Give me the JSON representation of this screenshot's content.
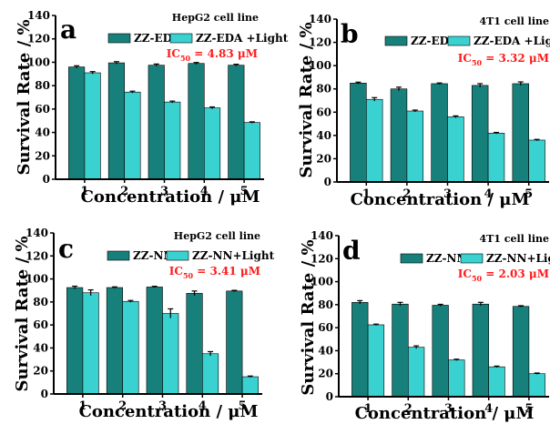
{
  "colors": {
    "dark_bar": "#17807a",
    "light_bar": "#3ad1d1",
    "ic50": "#ff1a1a",
    "axis": "#000000"
  },
  "chart_data": [
    {
      "type": "bar",
      "panel_label": "a",
      "cell_line": "HepG2 cell line",
      "categories": [
        "1",
        "2",
        "3",
        "4",
        "5"
      ],
      "series": [
        {
          "name": "ZZ-EDA",
          "values": [
            96,
            99.5,
            97.5,
            99,
            97.5
          ],
          "errors": [
            1,
            1,
            1,
            0.8,
            0.8
          ]
        },
        {
          "name": "ZZ-EDA +Light",
          "values": [
            91,
            74.5,
            66,
            61,
            48.5
          ],
          "errors": [
            1,
            0.8,
            0.8,
            0.8,
            0.6
          ]
        }
      ],
      "ic50": {
        "prefix": "IC",
        "sub": "50",
        "value": " = 4.83 μM"
      },
      "xlabel": "Concentration / μM",
      "ylabel": "Survival Rate / %",
      "ylim": [
        0,
        140
      ],
      "yticks": [
        "0",
        "20",
        "40",
        "60",
        "80",
        "100",
        "120",
        "140"
      ],
      "legend": "top"
    },
    {
      "type": "bar",
      "panel_label": "b",
      "cell_line": "4T1 cell line",
      "categories": [
        "1",
        "2",
        "3",
        "4",
        "5"
      ],
      "series": [
        {
          "name": "ZZ-EDA",
          "values": [
            85,
            80,
            84.5,
            83,
            84.5
          ],
          "errors": [
            0.8,
            1.5,
            0.6,
            1.5,
            1.5
          ]
        },
        {
          "name": "ZZ-EDA +Light",
          "values": [
            71,
            61,
            56,
            42,
            36
          ],
          "errors": [
            1.5,
            0.8,
            0.8,
            0.6,
            0.6
          ]
        }
      ],
      "ic50": {
        "prefix": "IC",
        "sub": "50",
        "value": " = 3.32 μM"
      },
      "xlabel": "Concentration / μM",
      "ylabel": "Survival Rate / %",
      "ylim": [
        0,
        140
      ],
      "yticks": [
        "0",
        "20",
        "40",
        "60",
        "80",
        "100",
        "120",
        "140"
      ],
      "legend": "top"
    },
    {
      "type": "bar",
      "panel_label": "c",
      "cell_line": "HepG2 cell line",
      "categories": [
        "1",
        "2",
        "3",
        "4",
        "5"
      ],
      "series": [
        {
          "name": "ZZ-NN",
          "values": [
            92.5,
            92.5,
            93,
            87.5,
            89.5
          ],
          "errors": [
            1.2,
            0.6,
            0.6,
            2,
            0.6
          ]
        },
        {
          "name": "ZZ-NN+Light",
          "values": [
            88,
            80.5,
            70,
            35,
            15
          ],
          "errors": [
            2.5,
            0.8,
            4,
            1.8,
            0.6
          ]
        }
      ],
      "ic50": {
        "prefix": "IC",
        "sub": "50",
        "value": " = 3.41 μM"
      },
      "xlabel": "Concentration / μM",
      "ylabel": "Survival Rate / %",
      "ylim": [
        0,
        140
      ],
      "yticks": [
        "0",
        "20",
        "40",
        "60",
        "80",
        "100",
        "120",
        "140"
      ],
      "legend": "top"
    },
    {
      "type": "bar",
      "panel_label": "d",
      "cell_line": "4T1 cell line",
      "categories": [
        "1",
        "2",
        "3",
        "4",
        "5"
      ],
      "series": [
        {
          "name": "ZZ-NN",
          "values": [
            82,
            80.5,
            79.5,
            80.5,
            78.5
          ],
          "errors": [
            1.5,
            1.5,
            0.8,
            1.5,
            0.6
          ]
        },
        {
          "name": "ZZ-NN+Light",
          "values": [
            62.5,
            43,
            32,
            26,
            20
          ],
          "errors": [
            0.6,
            1.2,
            0.6,
            0.6,
            0.6
          ]
        }
      ],
      "ic50": {
        "prefix": "IC",
        "sub": "50",
        "value": " = 2.03 μM"
      },
      "xlabel": "Concentration / μM",
      "ylabel": "Survival Rate / %",
      "ylim": [
        0,
        140
      ],
      "yticks": [
        "0",
        "20",
        "40",
        "60",
        "80",
        "100",
        "120",
        "140"
      ],
      "legend": "top"
    }
  ]
}
